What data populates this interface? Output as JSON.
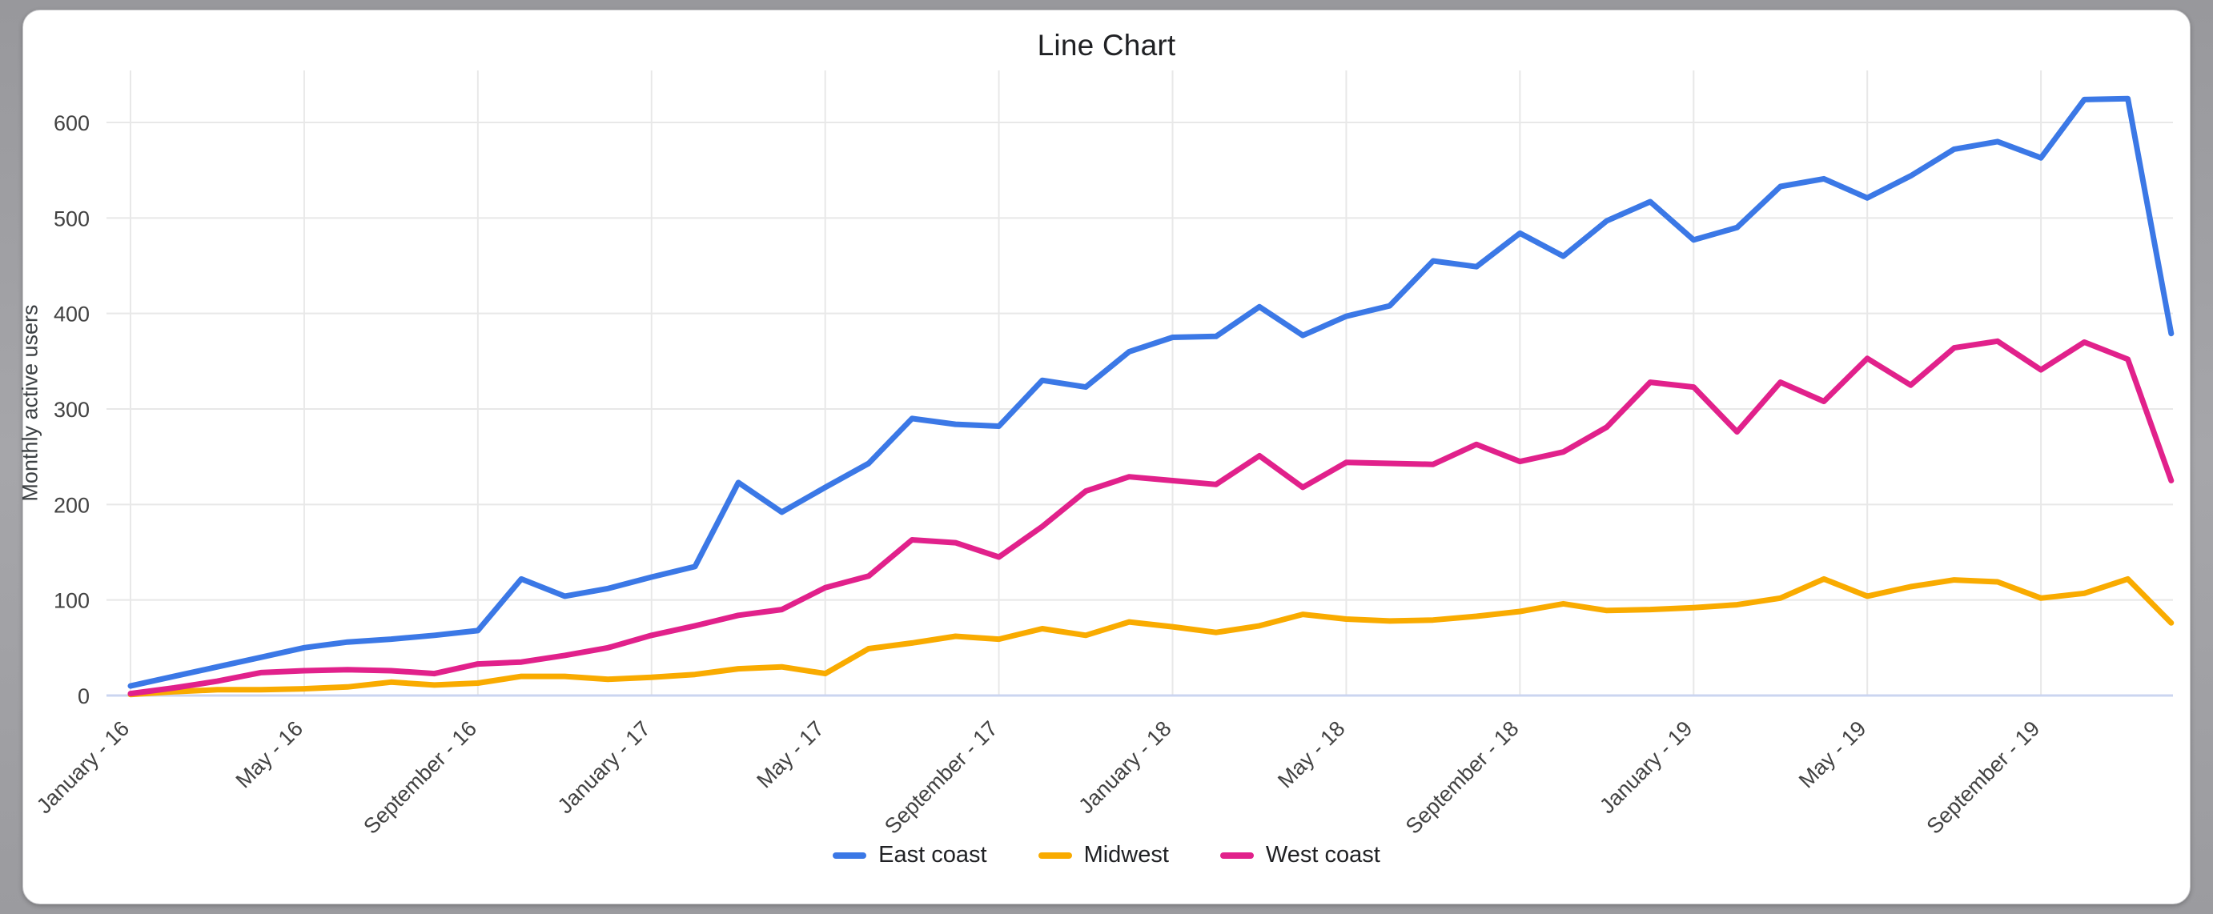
{
  "chart_data": {
    "type": "line",
    "title": "Line Chart",
    "xlabel": "",
    "ylabel": "Monthly active users",
    "x_tick_labels": [
      "January - 16",
      "May - 16",
      "September - 16",
      "January - 17",
      "May - 17",
      "September - 17",
      "January - 18",
      "May - 18",
      "September - 18",
      "January - 19",
      "May - 19",
      "September - 19"
    ],
    "x_tick_every": 4,
    "n_points": 48,
    "y_ticks": [
      0,
      100,
      200,
      300,
      400,
      500,
      600
    ],
    "ylim": [
      0,
      654
    ],
    "grid": true,
    "legend_position": "bottom",
    "series": [
      {
        "name": "East coast",
        "color": "#3b78e6",
        "values": [
          10,
          20,
          30,
          40,
          50,
          56,
          59,
          63,
          68,
          122,
          104,
          112,
          124,
          135,
          223,
          192,
          218,
          243,
          290,
          284,
          282,
          330,
          323,
          360,
          375,
          376,
          407,
          377,
          397,
          408,
          455,
          449,
          484,
          460,
          497,
          517,
          477,
          490,
          533,
          541,
          521,
          544,
          572,
          580,
          563,
          624,
          625,
          379
        ]
      },
      {
        "name": "Midwest",
        "color": "#f9ab00",
        "values": [
          1,
          4,
          6,
          6,
          7,
          9,
          14,
          11,
          13,
          20,
          20,
          17,
          19,
          22,
          28,
          30,
          23,
          49,
          55,
          62,
          59,
          70,
          63,
          77,
          72,
          66,
          73,
          85,
          80,
          78,
          79,
          83,
          88,
          96,
          89,
          90,
          92,
          95,
          102,
          122,
          104,
          114,
          121,
          119,
          102,
          107,
          122,
          76
        ]
      },
      {
        "name": "West coast",
        "color": "#e1218b",
        "values": [
          2,
          8,
          15,
          24,
          26,
          27,
          26,
          23,
          33,
          35,
          42,
          50,
          63,
          73,
          84,
          90,
          113,
          125,
          163,
          160,
          145,
          177,
          214,
          229,
          225,
          221,
          251,
          218,
          244,
          243,
          242,
          263,
          245,
          255,
          281,
          328,
          323,
          276,
          328,
          308,
          353,
          325,
          364,
          371,
          341,
          370,
          352,
          225
        ]
      }
    ]
  },
  "colors": {
    "grid_line": "#e8e8e8",
    "baseline": "#cbd5f0",
    "tick_text": "#424242",
    "title_text": "#202124",
    "legend_text": "#202124",
    "frame_background": "#a1a1a5",
    "card_background": "#ffffff"
  }
}
